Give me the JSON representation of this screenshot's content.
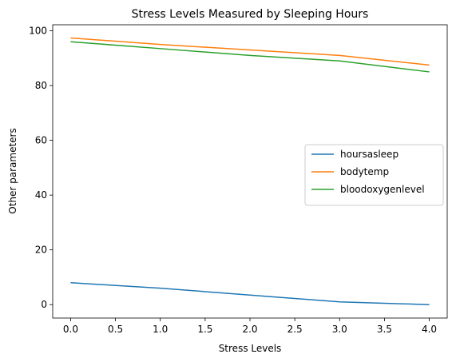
{
  "chart_data": {
    "type": "line",
    "title": "Stress Levels Measured by Sleeping Hours",
    "xlabel": "Stress Levels",
    "ylabel": "Other parameters",
    "x": [
      0,
      1,
      2,
      3,
      4
    ],
    "xlim": [
      -0.2,
      4.2
    ],
    "ylim": [
      -4.9,
      102.2
    ],
    "xticks": [
      "0.0",
      "0.5",
      "1.0",
      "1.5",
      "2.0",
      "2.5",
      "3.0",
      "3.5",
      "4.0"
    ],
    "yticks": [
      "0",
      "20",
      "40",
      "60",
      "80",
      "100"
    ],
    "grid": false,
    "legend_position": "center-right",
    "series": [
      {
        "name": "hoursasleep",
        "color": "#1f77b4",
        "values": [
          8.0,
          6.0,
          3.5,
          1.0,
          0.0
        ]
      },
      {
        "name": "bodytemp",
        "color": "#ff7f0e",
        "values": [
          97.4,
          95.0,
          93.0,
          91.0,
          87.5
        ]
      },
      {
        "name": "bloodoxygenlevel",
        "color": "#2ca02c",
        "values": [
          96.0,
          93.5,
          91.0,
          89.0,
          85.0
        ]
      }
    ]
  }
}
